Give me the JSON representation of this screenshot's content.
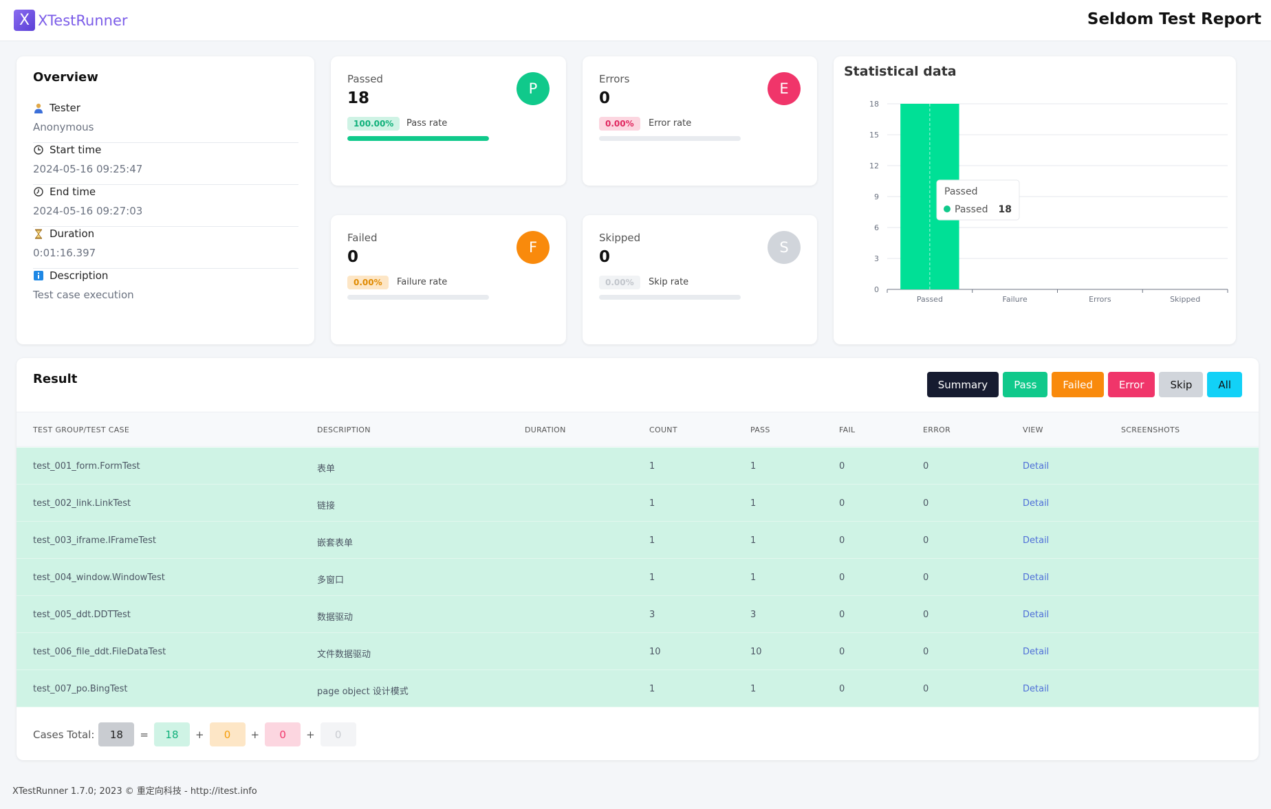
{
  "app": {
    "logo_letter": "X",
    "logo_text": "XTestRunner",
    "report_title": "Seldom Test Report"
  },
  "overview": {
    "title": "Overview",
    "rows": [
      {
        "icon": "user-icon",
        "label": "Tester",
        "value": "Anonymous"
      },
      {
        "icon": "clock-icon",
        "label": "Start time",
        "value": "2024-05-16 09:25:47"
      },
      {
        "icon": "clock-end-icon",
        "label": "End time",
        "value": "2024-05-16 09:27:03"
      },
      {
        "icon": "hourglass-icon",
        "label": "Duration",
        "value": "0:01:16.397"
      },
      {
        "icon": "info-icon",
        "label": "Description",
        "value": "Test case execution"
      }
    ]
  },
  "stats": {
    "passed": {
      "label": "Passed",
      "count": "18",
      "letter": "P",
      "badge": "100.00%",
      "rate_label": "Pass rate",
      "fraction": 1.0,
      "color": "#10c98b"
    },
    "errors": {
      "label": "Errors",
      "count": "0",
      "letter": "E",
      "badge": "0.00%",
      "rate_label": "Error rate",
      "fraction": 0,
      "color": "#f0356a"
    },
    "failed": {
      "label": "Failed",
      "count": "0",
      "letter": "F",
      "badge": "0.00%",
      "rate_label": "Failure rate",
      "fraction": 0,
      "color": "#f98a0c"
    },
    "skipped": {
      "label": "Skipped",
      "count": "0",
      "letter": "S",
      "badge": "0.00%",
      "rate_label": "Skip rate",
      "fraction": 0,
      "color": "#d1d5db"
    }
  },
  "chart_data": {
    "type": "bar",
    "title": "Statistical data",
    "categories": [
      "Passed",
      "Failure",
      "Errors",
      "Skipped"
    ],
    "values": [
      18,
      0,
      0,
      0
    ],
    "yticks": [
      0,
      3,
      6,
      9,
      12,
      15,
      18
    ],
    "ylim": [
      0,
      18
    ],
    "grid": true,
    "bar_color": "#00e096",
    "tooltip": {
      "title": "Passed",
      "series": "Passed",
      "value": "18"
    }
  },
  "result": {
    "title": "Result",
    "filters": [
      {
        "label": "Summary",
        "color": "#161b30"
      },
      {
        "label": "Pass",
        "color": "#10c98b"
      },
      {
        "label": "Failed",
        "color": "#f98a0c"
      },
      {
        "label": "Error",
        "color": "#f0356a"
      },
      {
        "label": "Skip",
        "color": "#d1d5db"
      },
      {
        "label": "All",
        "color": "#12d1f7"
      }
    ],
    "columns": [
      "TEST GROUP/TEST CASE",
      "DESCRIPTION",
      "DURATION",
      "COUNT",
      "PASS",
      "FAIL",
      "ERROR",
      "VIEW",
      "SCREENSHOTS"
    ],
    "rows": [
      {
        "name": "test_001_form.FormTest",
        "desc": "表单",
        "duration": "",
        "count": "1",
        "pass": "1",
        "fail": "0",
        "error": "0",
        "view": "Detail"
      },
      {
        "name": "test_002_link.LinkTest",
        "desc": "链接",
        "duration": "",
        "count": "1",
        "pass": "1",
        "fail": "0",
        "error": "0",
        "view": "Detail"
      },
      {
        "name": "test_003_iframe.IFrameTest",
        "desc": "嵌套表单",
        "duration": "",
        "count": "1",
        "pass": "1",
        "fail": "0",
        "error": "0",
        "view": "Detail"
      },
      {
        "name": "test_004_window.WindowTest",
        "desc": "多窗口",
        "duration": "",
        "count": "1",
        "pass": "1",
        "fail": "0",
        "error": "0",
        "view": "Detail"
      },
      {
        "name": "test_005_ddt.DDTTest",
        "desc": "数据驱动",
        "duration": "",
        "count": "3",
        "pass": "3",
        "fail": "0",
        "error": "0",
        "view": "Detail"
      },
      {
        "name": "test_006_file_ddt.FileDataTest",
        "desc": "文件数据驱动",
        "duration": "",
        "count": "10",
        "pass": "10",
        "fail": "0",
        "error": "0",
        "view": "Detail"
      },
      {
        "name": "test_007_po.BingTest",
        "desc": "page object 设计模式",
        "duration": "",
        "count": "1",
        "pass": "1",
        "fail": "0",
        "error": "0",
        "view": "Detail"
      }
    ],
    "totals": {
      "label": "Cases Total:",
      "total": "18",
      "passed": "18",
      "failed": "0",
      "errors": "0",
      "skipped": "0",
      "eq": "=",
      "plus": "+"
    }
  },
  "footer": {
    "text": "XTestRunner 1.7.0; 2023 © 重定向科技 - http://itest.info"
  }
}
